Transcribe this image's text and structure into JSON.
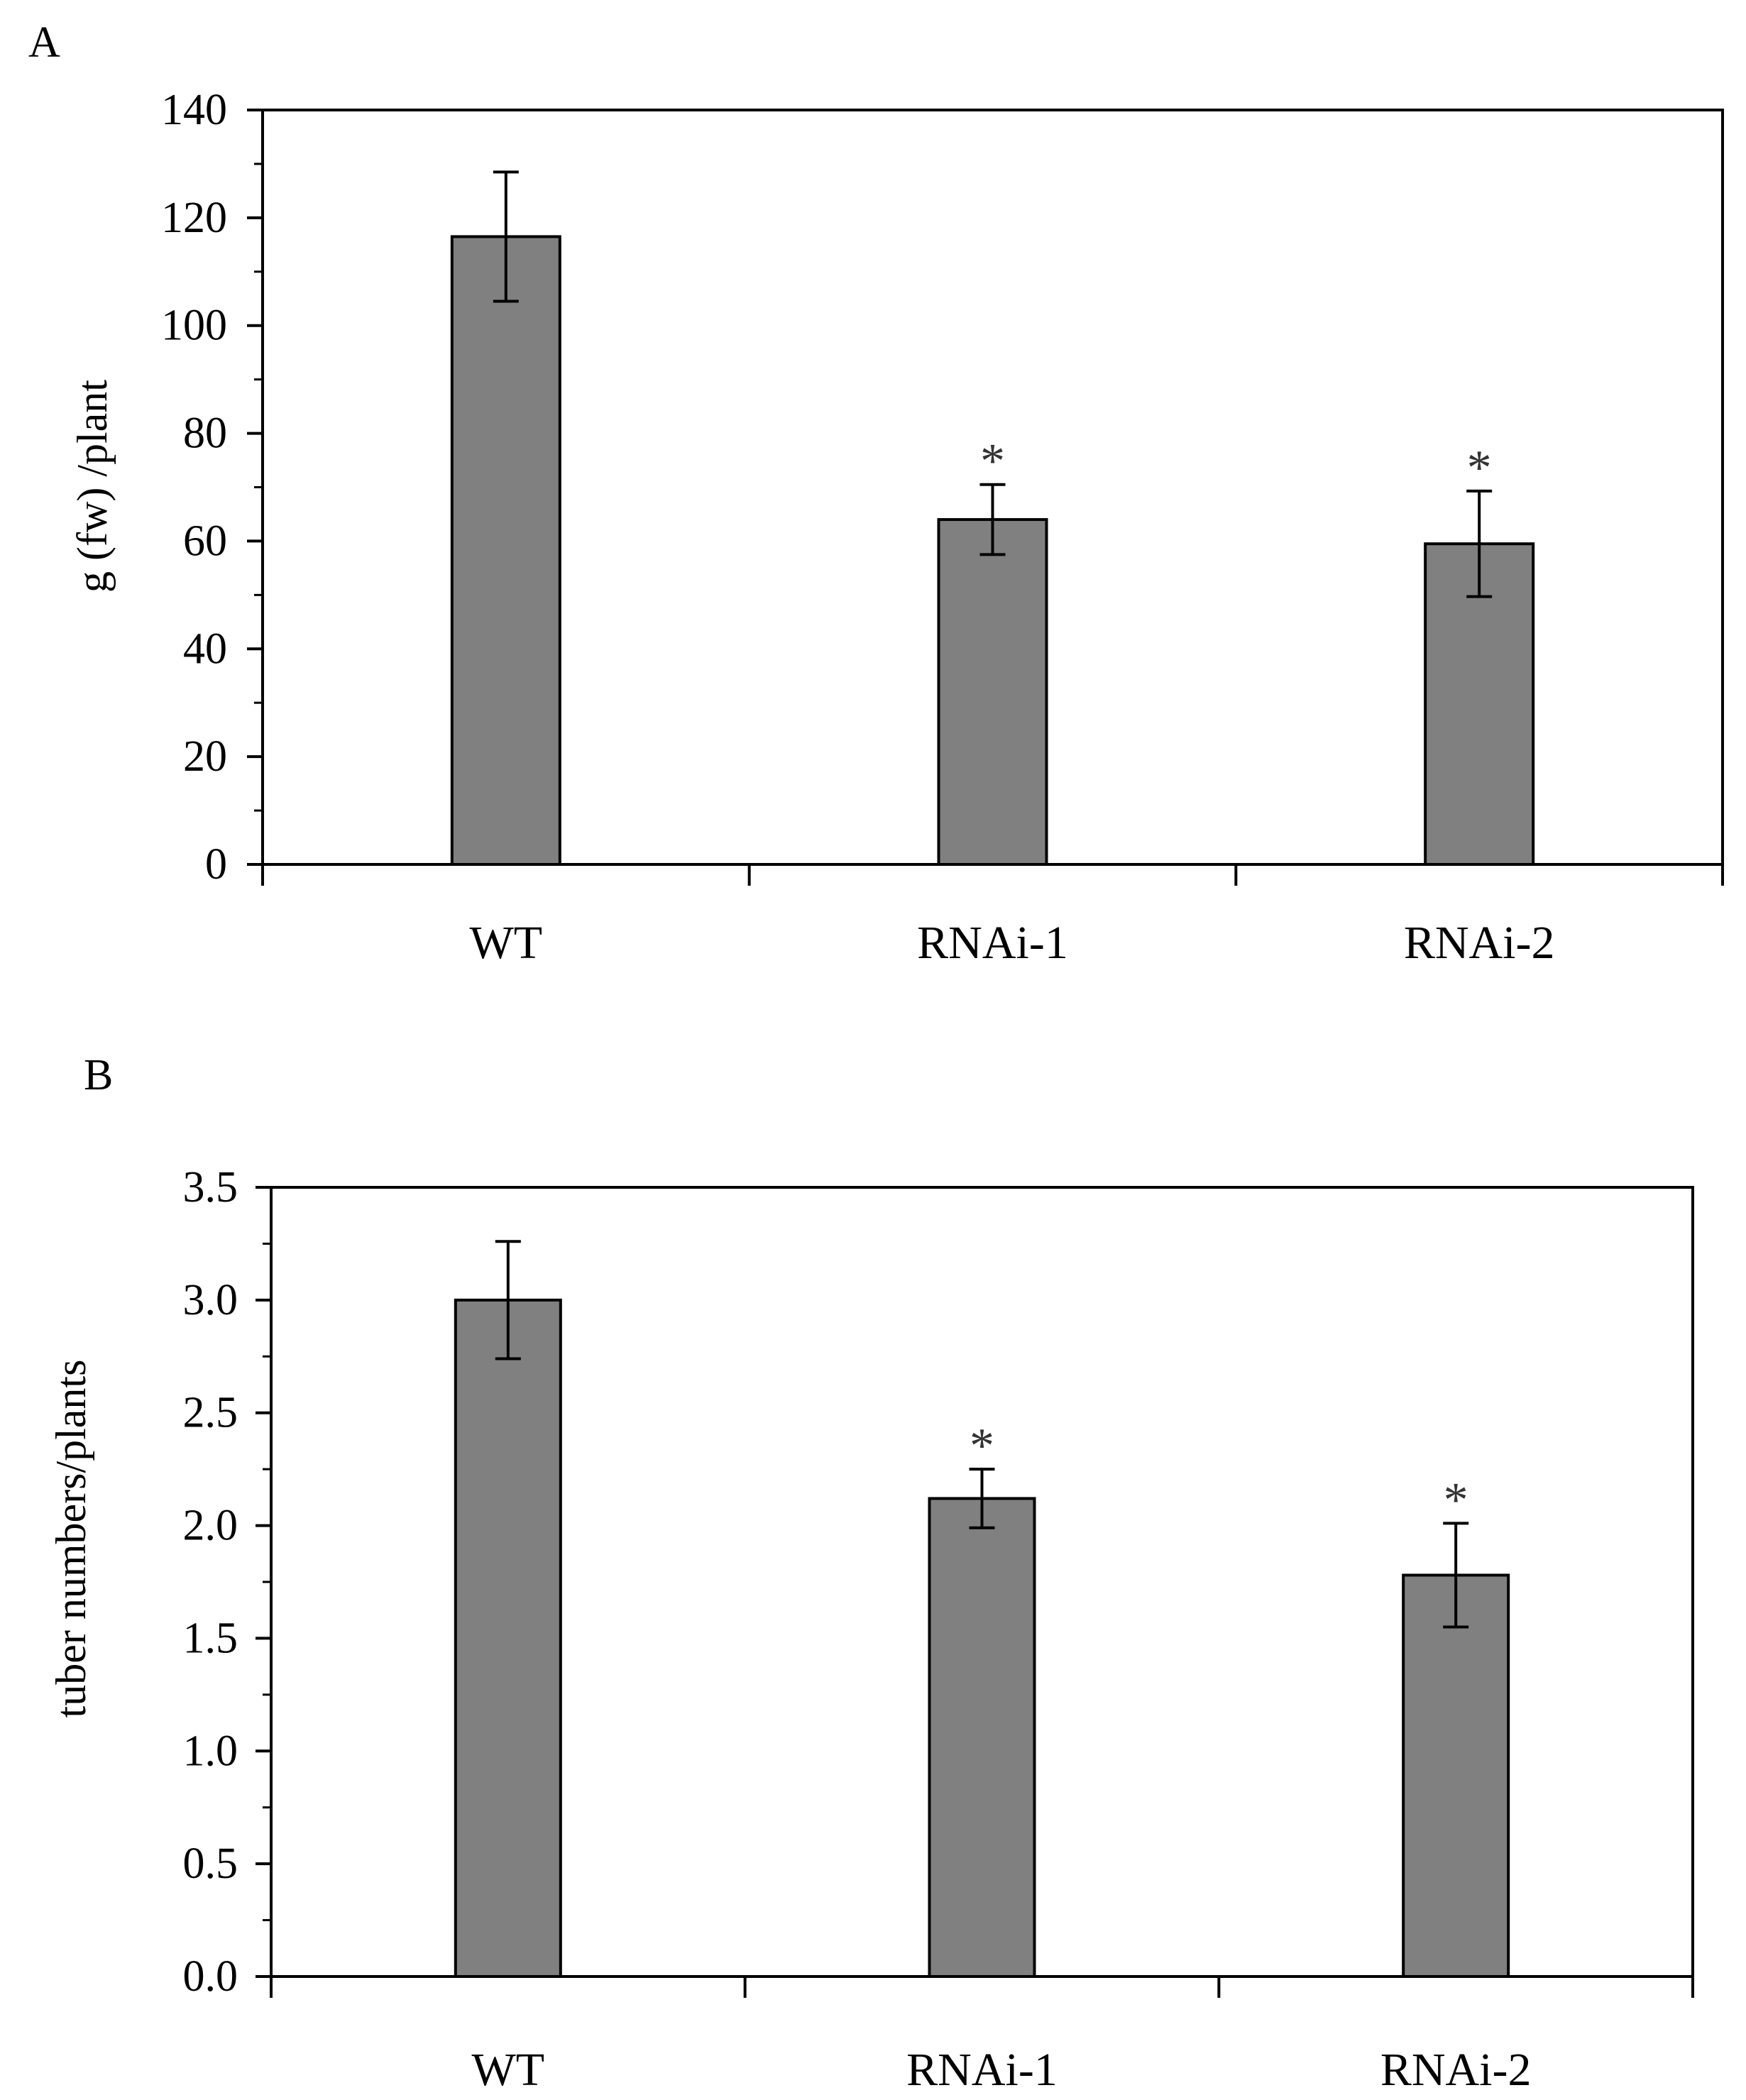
{
  "chart_data": [
    {
      "panel": "A",
      "type": "bar",
      "categories": [
        "WT",
        "RNAi-1",
        "RNAi-2"
      ],
      "values": [
        116.5,
        64,
        59.5
      ],
      "errors": [
        12,
        6.5,
        9.8
      ],
      "significance": [
        "",
        "*",
        "*"
      ],
      "title": "",
      "xlabel": "",
      "ylabel": "g (fw) /plant",
      "ylim": [
        0,
        140
      ],
      "yticks": [
        "0",
        "20",
        "40",
        "60",
        "80",
        "100",
        "120",
        "140"
      ],
      "grid": false,
      "bar_color": "#808080"
    },
    {
      "panel": "B",
      "type": "bar",
      "categories": [
        "WT",
        "RNAi-1",
        "RNAi-2"
      ],
      "values": [
        3.0,
        2.12,
        1.78
      ],
      "errors": [
        0.26,
        0.13,
        0.23
      ],
      "significance": [
        "",
        "*",
        "*"
      ],
      "title": "",
      "xlabel": "",
      "ylabel": "tuber numbers/plants",
      "ylim": [
        0,
        3.5
      ],
      "yticks": [
        "0.0",
        "0.5",
        "1.0",
        "1.5",
        "2.0",
        "2.5",
        "3.0",
        "3.5"
      ],
      "grid": false,
      "bar_color": "#808080"
    }
  ]
}
